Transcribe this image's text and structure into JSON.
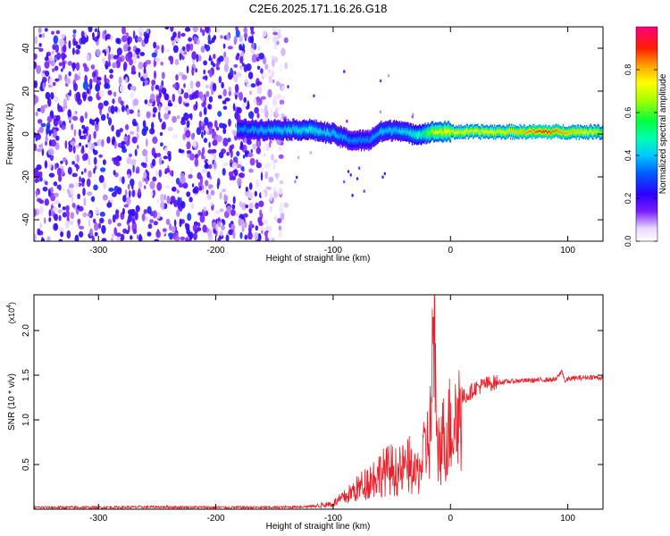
{
  "title": "C2E6.2025.171.16.26.G18",
  "colorbar": {
    "label": "Normalized spectral amplitude",
    "ticks": [
      "0.0",
      "0.2",
      "0.4",
      "0.6",
      "0.8"
    ],
    "tick_values": [
      0.0,
      0.2,
      0.4,
      0.6,
      0.8
    ]
  },
  "chart_data": [
    {
      "type": "heatmap",
      "xlabel": "Height of straight line (km)",
      "ylabel": "Frequency (Hz)",
      "xlim": [
        -355,
        130
      ],
      "ylim": [
        -50,
        50
      ],
      "xticks": [
        -300,
        -200,
        -100,
        0,
        100
      ],
      "xtick_labels": [
        "-300",
        "-200",
        "-100",
        "0",
        "100"
      ],
      "yticks": [
        -40,
        -20,
        0,
        20,
        40
      ],
      "ytick_labels": [
        "-40",
        "-20",
        "0",
        "20",
        "40"
      ],
      "colorscale": "rainbow",
      "zlim": [
        0,
        1
      ],
      "ridge": {
        "description_points_x": [
          -180,
          -150,
          -120,
          -100,
          -85,
          -70,
          -60,
          -45,
          -35,
          -25,
          -15,
          0,
          50,
          80,
          100,
          130
        ],
        "center_freq": [
          2,
          2,
          2,
          0,
          -3,
          -3,
          1,
          2,
          0,
          0,
          1,
          1,
          1,
          1,
          1,
          1
        ],
        "peak_amplitude": [
          0.35,
          0.4,
          0.45,
          0.4,
          0.35,
          0.35,
          0.4,
          0.4,
          0.45,
          0.5,
          0.7,
          0.75,
          0.75,
          0.9,
          0.8,
          0.7
        ]
      }
    },
    {
      "type": "line",
      "xlabel": "Height of straight line (km)",
      "ylabel": "SNR (10 * v/v)",
      "yscale_label": "(x10",
      "yscale_exp": "4",
      "xlim": [
        -355,
        130
      ],
      "ylim": [
        0,
        24000
      ],
      "xticks": [
        -300,
        -200,
        -100,
        0,
        100
      ],
      "xtick_labels": [
        "-300",
        "-200",
        "-100",
        "0",
        "100"
      ],
      "yticks": [
        5000,
        10000,
        15000,
        20000
      ],
      "ytick_labels": [
        "0.5",
        "1.0",
        "1.5",
        "2.0"
      ],
      "series": [
        {
          "color": "#e8202a",
          "x": [
            -355,
            -300,
            -250,
            -200,
            -150,
            -120,
            -110,
            -100,
            -90,
            -80,
            -70,
            -60,
            -50,
            -45,
            -40,
            -35,
            -30,
            -25,
            -20,
            -17,
            -14,
            -12,
            -10,
            -5,
            0,
            5,
            10,
            15,
            20,
            30,
            40,
            50,
            60,
            70,
            80,
            90,
            95,
            98,
            100,
            110,
            120,
            130
          ],
          "y": [
            200,
            200,
            250,
            200,
            200,
            300,
            500,
            700,
            1500,
            2500,
            3500,
            4500,
            5000,
            4500,
            5000,
            5500,
            4000,
            5500,
            8000,
            10000,
            24000,
            7000,
            8000,
            9000,
            10500,
            11500,
            12500,
            12800,
            13500,
            14000,
            14200,
            14300,
            14400,
            14400,
            14500,
            14500,
            15500,
            14200,
            14600,
            14700,
            14800,
            14700
          ]
        }
      ]
    }
  ]
}
